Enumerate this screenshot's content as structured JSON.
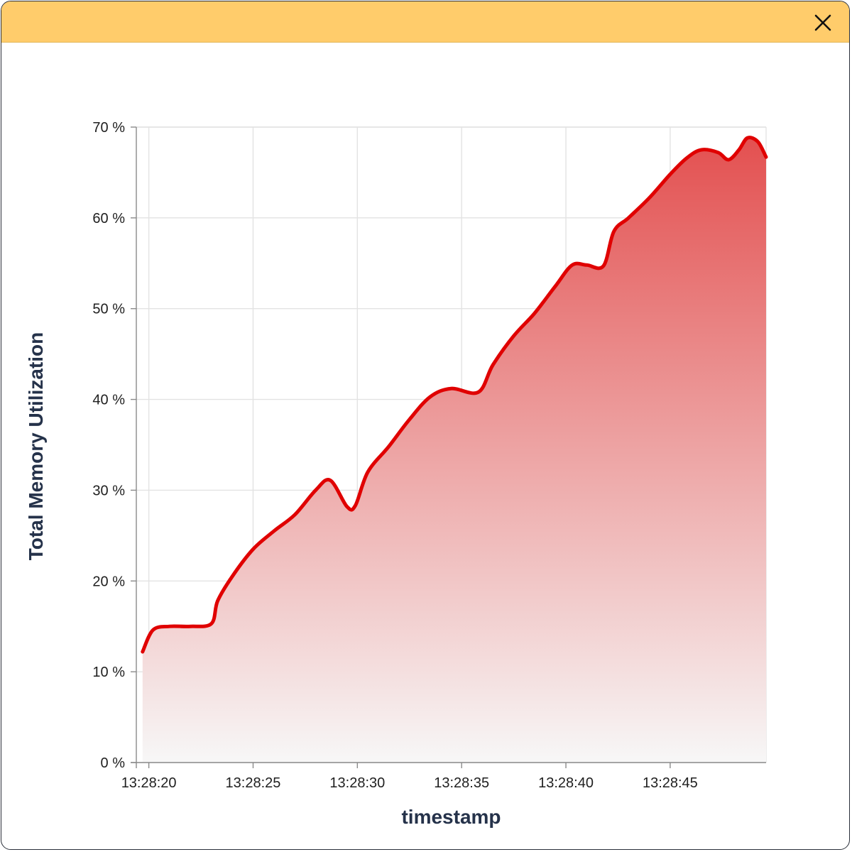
{
  "window": {
    "titlebar_color": "#ffcc6b",
    "close_icon": "close-icon"
  },
  "chart_data": {
    "type": "area",
    "xlabel": "timestamp",
    "ylabel": "Total Memory Utilization",
    "ylim": [
      0,
      70
    ],
    "xlim": [
      "13:28:19.4",
      "13:28:49.6"
    ],
    "grid": true,
    "line_color": "#e00000",
    "fill_gradient_top": "#e35050",
    "fill_gradient_bottom": "#f7f7f7",
    "y_ticks": [
      "0 %",
      "10 %",
      "20 %",
      "30 %",
      "40 %",
      "50 %",
      "60 %",
      "70 %"
    ],
    "y_tick_values": [
      0,
      10,
      20,
      30,
      40,
      50,
      60,
      70
    ],
    "x_ticks": [
      "13:28:20",
      "13:28:25",
      "13:28:30",
      "13:28:35",
      "13:28:40",
      "13:28:45"
    ],
    "series": [
      {
        "values_time": [
          "13:28:19.7",
          "13:28:20.2",
          "13:28:21.0",
          "13:28:22.0",
          "13:28:23.0",
          "13:28:23.3",
          "13:28:24.0",
          "13:28:25.0",
          "13:28:26.0",
          "13:28:27.0",
          "13:28:28.0",
          "13:28:28.7",
          "13:28:29.5",
          "13:28:29.9",
          "13:28:30.5",
          "13:28:31.5",
          "13:28:32.5",
          "13:28:33.5",
          "13:28:34.5",
          "13:28:35.8",
          "13:28:36.5",
          "13:28:37.5",
          "13:28:38.5",
          "13:28:39.5",
          "13:28:40.3",
          "13:28:41.0",
          "13:28:41.8",
          "13:28:42.3",
          "13:28:43.0",
          "13:28:44.0",
          "13:28:45.0",
          "13:28:45.8",
          "13:28:46.5",
          "13:28:47.3",
          "13:28:47.8",
          "13:28:48.3",
          "13:28:48.7",
          "13:28:49.2",
          "13:28:49.6"
        ],
        "values": [
          12.2,
          14.6,
          15.0,
          15.0,
          15.3,
          17.8,
          20.5,
          23.5,
          25.5,
          27.3,
          30.0,
          31.1,
          28.2,
          28.3,
          32.0,
          34.8,
          37.8,
          40.3,
          41.2,
          40.8,
          43.8,
          47.0,
          49.5,
          52.5,
          54.8,
          54.8,
          54.7,
          58.5,
          60.0,
          62.2,
          64.8,
          66.6,
          67.5,
          67.2,
          66.4,
          67.5,
          68.8,
          68.4,
          66.7
        ]
      }
    ]
  }
}
